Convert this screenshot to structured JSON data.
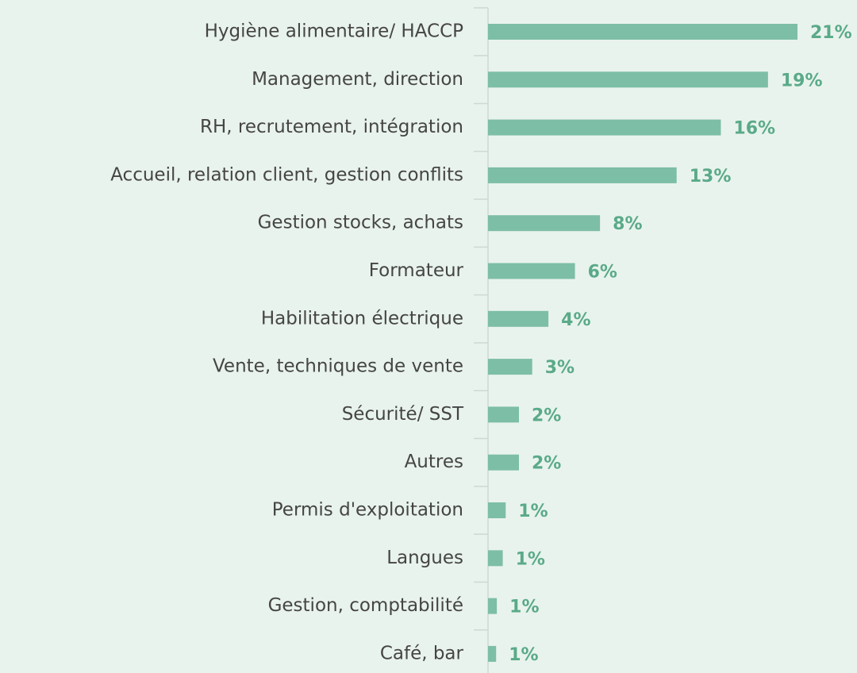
{
  "chart_data": {
    "type": "hbar",
    "categories": [
      "Hygiène alimentaire/ HACCP",
      "Management, direction",
      "RH, recrutement, intégration",
      "Accueil, relation client, gestion conflits",
      "Gestion stocks, achats",
      "Formateur",
      "Habilitation électrique",
      "Vente, techniques de vente",
      "Sécurité/ SST",
      "Autres",
      "Permis d'exploitation",
      "Langues",
      "Gestion, comptabilité",
      "Café, bar"
    ],
    "values": [
      21,
      19,
      15.8,
      12.8,
      7.6,
      5.9,
      4.1,
      3.0,
      2.1,
      2.1,
      1.2,
      1.0,
      0.6,
      0.55
    ],
    "value_labels": [
      "21%",
      "19%",
      "16%",
      "13%",
      "8%",
      "6%",
      "4%",
      "3%",
      "2%",
      "2%",
      "1%",
      "1%",
      "1%",
      "1%"
    ],
    "color": "#7dbea7",
    "label_color": "#5aaa89"
  }
}
